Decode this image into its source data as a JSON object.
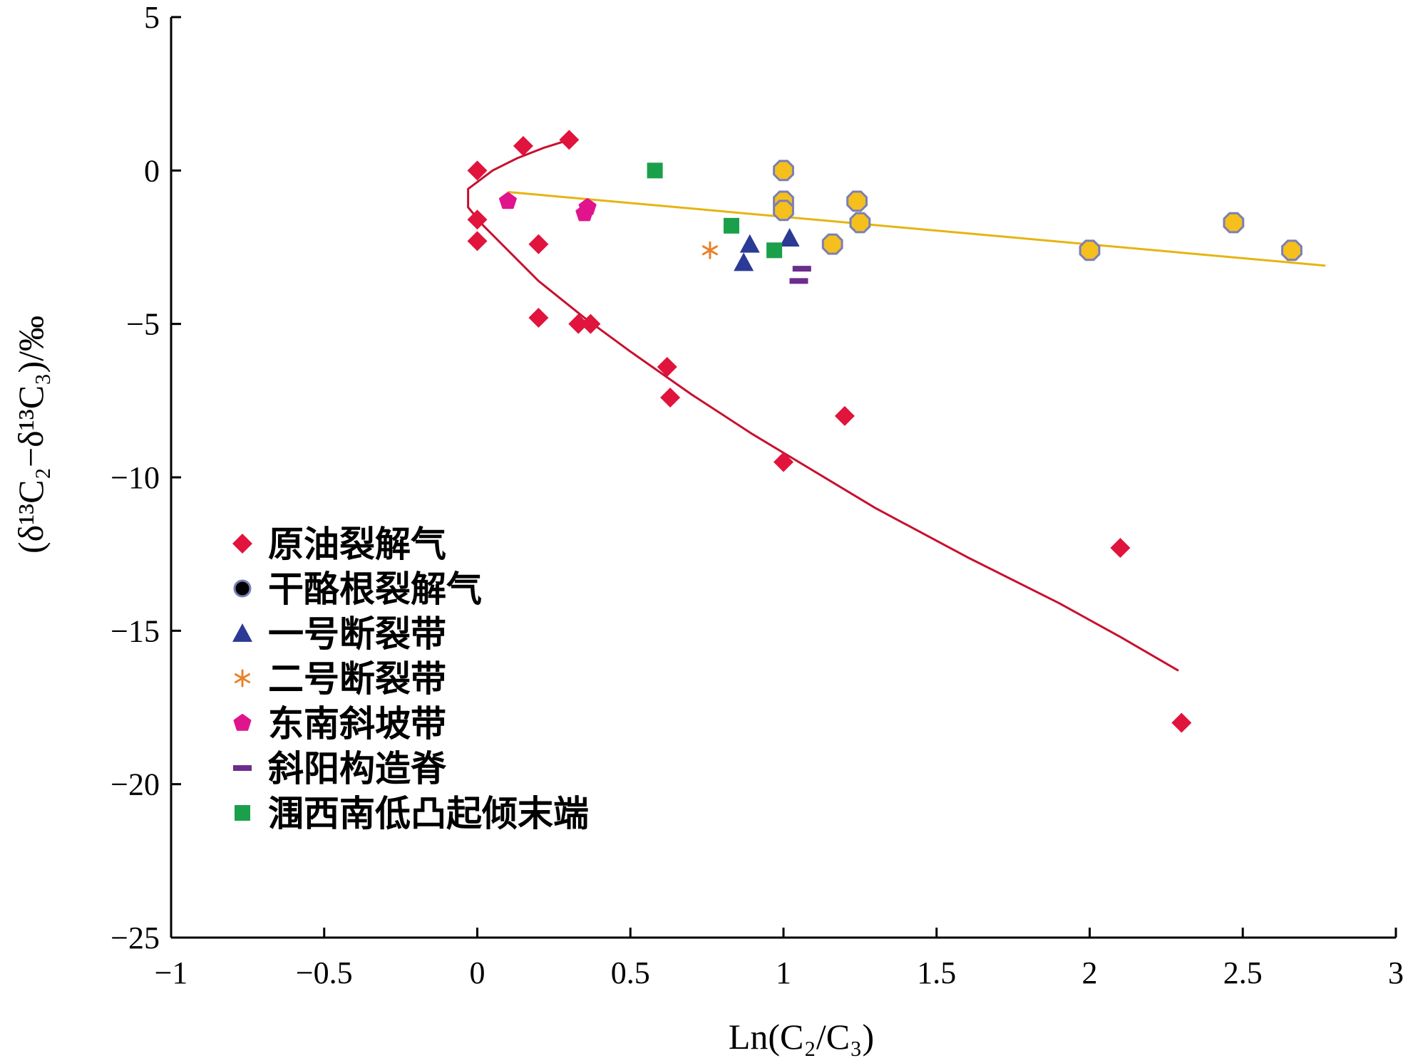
{
  "chart_data": {
    "type": "scatter",
    "title": "",
    "xlabel": "Ln(C₂/C₃)",
    "ylabel": "(δ¹³C₂−δ¹³C₃)/‰",
    "xlim": [
      -1,
      3
    ],
    "ylim": [
      -25,
      5
    ],
    "xticks": [
      -1,
      -0.5,
      0,
      0.5,
      1,
      1.5,
      2,
      2.5,
      3
    ],
    "xtick_labels": [
      "−1",
      "−0.5",
      "0",
      "0.5",
      "1",
      "1.5",
      "2",
      "2.5",
      "3"
    ],
    "yticks": [
      5,
      0,
      -5,
      -10,
      -15,
      -20,
      -25
    ],
    "ytick_labels": [
      "5",
      "0",
      "−5",
      "−10",
      "−15",
      "−20",
      "−25"
    ],
    "grid": false,
    "legend_position": "bottom-left",
    "series": [
      {
        "name": "原油裂解气",
        "marker": "diamond",
        "color": "#e0143c",
        "points": [
          [
            0,
            0
          ],
          [
            0.15,
            0.8
          ],
          [
            0.3,
            1
          ],
          [
            0,
            -1.6
          ],
          [
            0,
            -2.3
          ],
          [
            0.2,
            -2.4
          ],
          [
            0.2,
            -4.8
          ],
          [
            0.33,
            -5
          ],
          [
            0.37,
            -5
          ],
          [
            0.62,
            -6.4
          ],
          [
            0.63,
            -7.4
          ],
          [
            1.2,
            -8
          ],
          [
            1,
            -9.5
          ],
          [
            2.1,
            -12.3
          ],
          [
            2.3,
            -18
          ]
        ]
      },
      {
        "name": "干酪根裂解气",
        "marker": "octagon",
        "color": "#f5bf1e",
        "edge": "#7a7fb5",
        "points": [
          [
            1,
            0
          ],
          [
            1,
            -1
          ],
          [
            1,
            -1.3
          ],
          [
            1.24,
            -1
          ],
          [
            1.25,
            -1.7
          ],
          [
            1.16,
            -2.4
          ],
          [
            2,
            -2.6
          ],
          [
            2.47,
            -1.7
          ],
          [
            2.66,
            -2.6
          ]
        ]
      },
      {
        "name": "一号断裂带",
        "marker": "triangle",
        "color": "#2b3a94",
        "points": [
          [
            0.89,
            -2.4
          ],
          [
            0.87,
            -3
          ],
          [
            1.02,
            -2.2
          ]
        ]
      },
      {
        "name": "二号断裂带",
        "marker": "asterisk",
        "color": "#e8822a",
        "points": [
          [
            0.76,
            -2.6
          ]
        ]
      },
      {
        "name": "东南斜坡带",
        "marker": "pentagon",
        "color": "#e0148c",
        "points": [
          [
            0.1,
            -1
          ],
          [
            0.36,
            -1.2
          ],
          [
            0.35,
            -1.4
          ]
        ]
      },
      {
        "name": "斜阳构造脊",
        "marker": "dash",
        "color": "#6b2d8c",
        "points": [
          [
            1.06,
            -3.2
          ],
          [
            1.05,
            -3.6
          ]
        ]
      },
      {
        "name": "涠西南低凸起倾末端",
        "marker": "square",
        "color": "#1aa04a",
        "points": [
          [
            0.58,
            0
          ],
          [
            0.83,
            -1.8
          ],
          [
            0.97,
            -2.6
          ]
        ]
      }
    ],
    "trendlines": [
      {
        "series": "原油裂解气",
        "color": "#c8102e",
        "kind": "curve",
        "points": [
          [
            0.3,
            1
          ],
          [
            0.22,
            0.75
          ],
          [
            0.13,
            0.4
          ],
          [
            0.05,
            0
          ],
          [
            -0.03,
            -0.6
          ],
          [
            -0.03,
            -1.2
          ],
          [
            0.02,
            -1.8
          ],
          [
            0.1,
            -2.6
          ],
          [
            0.2,
            -3.6
          ],
          [
            0.35,
            -4.8
          ],
          [
            0.5,
            -5.9
          ],
          [
            0.7,
            -7.3
          ],
          [
            0.9,
            -8.6
          ],
          [
            1.1,
            -9.8
          ],
          [
            1.3,
            -11
          ],
          [
            1.6,
            -12.6
          ],
          [
            1.9,
            -14.1
          ],
          [
            2.1,
            -15.2
          ],
          [
            2.29,
            -16.3
          ]
        ]
      },
      {
        "series": "干酪根裂解气",
        "color": "#e6b412",
        "kind": "linear",
        "points": [
          [
            0.1,
            -0.7
          ],
          [
            2.77,
            -3.1
          ]
        ]
      }
    ]
  }
}
